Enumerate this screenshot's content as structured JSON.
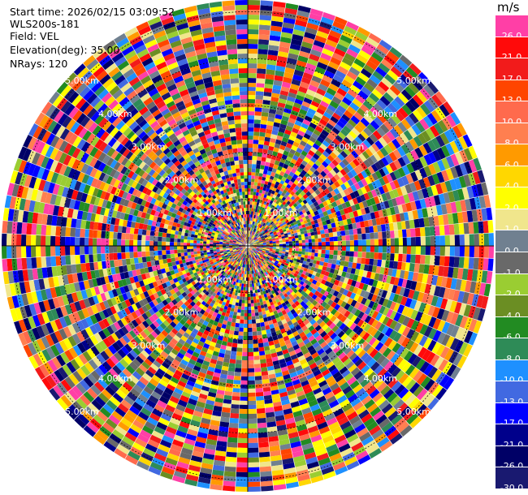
{
  "info": {
    "start_time": "Start time: 2026/02/15 03:09:52",
    "instrument": "WLS200s-181",
    "field": "Field: VEL",
    "elevation": "Elevation(deg): 35.00",
    "nrays": "NRays: 120"
  },
  "colorbar": {
    "unit": "m/s",
    "levels": [
      {
        "label": "26.0",
        "color": "#ff3fa6"
      },
      {
        "label": "21.0",
        "color": "#ff0a0a"
      },
      {
        "label": "17.0",
        "color": "#f21b1b"
      },
      {
        "label": "13.0",
        "color": "#ff4500"
      },
      {
        "label": "10.0",
        "color": "#ff6a4d"
      },
      {
        "label": "8.0",
        "color": "#ff7f50"
      },
      {
        "label": "6.0",
        "color": "#ff9a00"
      },
      {
        "label": "4.0",
        "color": "#ffd700"
      },
      {
        "label": "2.0",
        "color": "#ffff00"
      },
      {
        "label": "1.0",
        "color": "#f0e68c"
      },
      {
        "label": "0.0",
        "color": "#708090"
      },
      {
        "label": "-1.0",
        "color": "#696969"
      },
      {
        "label": "-2.0",
        "color": "#9acd32"
      },
      {
        "label": "-4.0",
        "color": "#6b8e23"
      },
      {
        "label": "-6.0",
        "color": "#228b22"
      },
      {
        "label": "-8.0",
        "color": "#2e8b57"
      },
      {
        "label": "-10.0",
        "color": "#1e90ff"
      },
      {
        "label": "-13.0",
        "color": "#4169e1"
      },
      {
        "label": "-17.0",
        "color": "#0000ff"
      },
      {
        "label": "-21.0",
        "color": "#00008b"
      },
      {
        "label": "-26.0",
        "color": "#000066"
      },
      {
        "label": "-30.0",
        "color": "#191970"
      }
    ]
  },
  "chart_data": {
    "type": "heatmap",
    "projection": "polar PPI",
    "field": "VEL",
    "units": "m/s",
    "nrays": 120,
    "range_rings_km": [
      1,
      2,
      3,
      4,
      5
    ],
    "range_ring_labels": [
      "1.00km",
      "2.00km",
      "3.00km",
      "4.00km",
      "5.00km"
    ],
    "crosshairs": true
  }
}
